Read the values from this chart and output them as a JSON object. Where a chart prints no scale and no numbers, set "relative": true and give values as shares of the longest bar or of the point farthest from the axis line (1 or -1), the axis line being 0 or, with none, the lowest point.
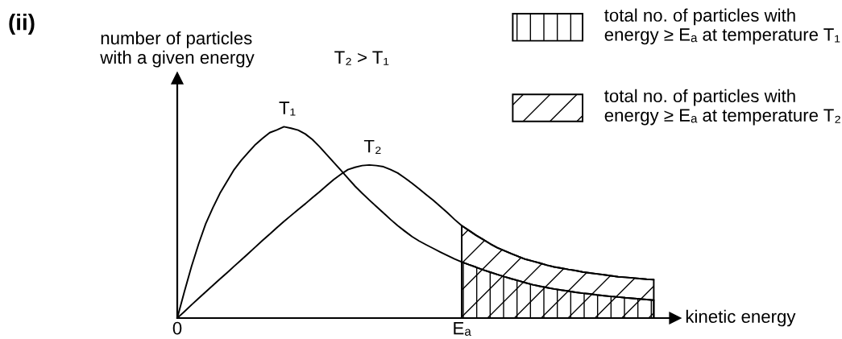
{
  "chart_data": {
    "type": "line",
    "title": "(ii)",
    "xlabel": "kinetic energy",
    "ylabel": "number of particles\nwith a given energy",
    "annotations": [
      "T₂ > T₁"
    ],
    "relative": true,
    "grid": false,
    "legend": "top right",
    "categories": [
      "0",
      null,
      null,
      null,
      null,
      null,
      null,
      null,
      null,
      null,
      null,
      null,
      null,
      null,
      null,
      null,
      null,
      null,
      null,
      null,
      null,
      null,
      null,
      null,
      null,
      null,
      null,
      null,
      null,
      null,
      null,
      null,
      null,
      null,
      null,
      null,
      null,
      null,
      null,
      null,
      "Eₐ",
      null,
      null,
      null,
      null,
      null,
      null,
      null,
      null,
      null,
      null,
      null,
      null,
      null,
      null,
      null,
      null,
      null,
      null,
      null,
      null,
      null,
      null,
      null,
      null,
      null,
      null,
      null
    ],
    "series": [
      {
        "name": "T₁",
        "color": "#000000",
        "values": [
          0,
          0.138,
          0.269,
          0.387,
          0.493,
          0.576,
          0.652,
          0.714,
          0.776,
          0.824,
          0.866,
          0.907,
          0.939,
          0.969,
          0.983,
          1,
          0.992,
          0.982,
          0.962,
          0.933,
          0.896,
          0.855,
          0.814,
          0.773,
          0.731,
          0.689,
          0.652,
          0.617,
          0.583,
          0.549,
          0.515,
          0.483,
          0.454,
          0.426,
          0.403,
          0.383,
          0.364,
          0.345,
          0.327,
          0.309,
          0.293,
          0.279,
          0.266,
          0.252,
          0.24,
          0.228,
          0.216,
          0.205,
          0.195,
          0.184,
          0.174,
          0.166,
          0.159,
          0.152,
          0.146,
          0.141,
          0.135,
          0.13,
          0.126,
          0.121,
          0.117,
          0.113,
          0.11,
          0.106,
          0.103,
          0.1,
          0.097,
          0.094
        ]
      },
      {
        "name": "T₂",
        "color": "#000000",
        "values": [
          0,
          0.034,
          0.069,
          0.103,
          0.137,
          0.17,
          0.204,
          0.237,
          0.271,
          0.304,
          0.338,
          0.372,
          0.406,
          0.439,
          0.472,
          0.505,
          0.536,
          0.567,
          0.597,
          0.629,
          0.66,
          0.692,
          0.724,
          0.751,
          0.776,
          0.788,
          0.797,
          0.8,
          0.797,
          0.791,
          0.776,
          0.758,
          0.732,
          0.705,
          0.675,
          0.645,
          0.615,
          0.583,
          0.55,
          0.515,
          0.483,
          0.458,
          0.433,
          0.411,
          0.388,
          0.368,
          0.352,
          0.336,
          0.321,
          0.307,
          0.297,
          0.287,
          0.276,
          0.267,
          0.261,
          0.254,
          0.248,
          0.241,
          0.236,
          0.231,
          0.226,
          0.221,
          0.216,
          0.213,
          0.21,
          0.206,
          0.203,
          0.201
        ]
      },
      {
        "name": "total no. of particles with\nenergy ≥ Eₐ at temperature T₁",
        "type": "area",
        "color": "#000000",
        "values": [
          null,
          null,
          null,
          null,
          null,
          null,
          null,
          null,
          null,
          null,
          null,
          null,
          null,
          null,
          null,
          null,
          null,
          null,
          null,
          null,
          null,
          null,
          null,
          null,
          null,
          null,
          null,
          null,
          null,
          null,
          null,
          null,
          null,
          null,
          null,
          null,
          null,
          null,
          null,
          null,
          0.293,
          0.279,
          0.266,
          0.252,
          0.24,
          0.228,
          0.216,
          0.205,
          0.195,
          0.184,
          0.174,
          0.166,
          0.159,
          0.152,
          0.146,
          0.141,
          0.135,
          0.13,
          0.126,
          0.121,
          0.117,
          0.113,
          0.11,
          0.106,
          0.103,
          0.1,
          0.097,
          0.094
        ]
      },
      {
        "name": "total no. of particles with\nenergy ≥ Eₐ at temperature T₂",
        "type": "area",
        "color": "#000000",
        "values": [
          null,
          null,
          null,
          null,
          null,
          null,
          null,
          null,
          null,
          null,
          null,
          null,
          null,
          null,
          null,
          null,
          null,
          null,
          null,
          null,
          null,
          null,
          null,
          null,
          null,
          null,
          null,
          null,
          null,
          null,
          null,
          null,
          null,
          null,
          null,
          null,
          null,
          null,
          null,
          null,
          0.483,
          0.458,
          0.433,
          0.411,
          0.388,
          0.368,
          0.352,
          0.336,
          0.321,
          0.307,
          0.297,
          0.287,
          0.276,
          0.267,
          0.261,
          0.254,
          0.248,
          0.241,
          0.236,
          0.231,
          0.226,
          0.221,
          0.216,
          0.213,
          0.21,
          0.206,
          0.203,
          0.201
        ]
      }
    ]
  }
}
